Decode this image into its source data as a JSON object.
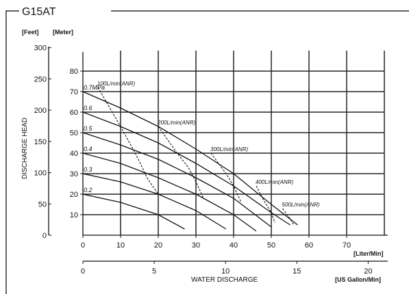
{
  "chart_data": {
    "type": "line",
    "title": "G15AT",
    "xlabel": "WATER DISCHARGE",
    "ylabel": "DISCHARGE HEAD",
    "x_unit_primary": "[Liter/Min]",
    "x_unit_secondary": "[US Gallon/Min]",
    "y_unit_primary": "[Meter]",
    "y_unit_secondary": "[Feet]",
    "xlim": [
      0,
      80
    ],
    "ylim": [
      0,
      90
    ],
    "x_ticks": [
      0,
      10,
      20,
      30,
      40,
      50,
      60,
      70
    ],
    "y_ticks": [
      10,
      20,
      30,
      40,
      50,
      60,
      70,
      80
    ],
    "x2_ticks": [
      0,
      5,
      10,
      15,
      20
    ],
    "y2_ticks": [
      0,
      50,
      100,
      150,
      200,
      250,
      300
    ],
    "grid": true,
    "series": [
      {
        "name": "0.7MPa",
        "x": [
          0,
          10,
          20,
          30,
          40,
          50,
          57
        ],
        "y": [
          70,
          62,
          53,
          42,
          30,
          15,
          5
        ]
      },
      {
        "name": "0.6",
        "x": [
          0,
          10,
          20,
          30,
          40,
          50,
          55
        ],
        "y": [
          60,
          53,
          45,
          35,
          24,
          11,
          5
        ]
      },
      {
        "name": "0.5",
        "x": [
          0,
          10,
          20,
          30,
          40,
          50
        ],
        "y": [
          50,
          44,
          37,
          28,
          18,
          4
        ]
      },
      {
        "name": "0.4",
        "x": [
          0,
          10,
          20,
          30,
          40,
          46
        ],
        "y": [
          40,
          35,
          28,
          20,
          10,
          2
        ]
      },
      {
        "name": "0.3",
        "x": [
          0,
          10,
          20,
          30,
          38
        ],
        "y": [
          30,
          26,
          20,
          12,
          3
        ]
      },
      {
        "name": "0.2",
        "x": [
          0,
          10,
          20,
          27
        ],
        "y": [
          20,
          16,
          10,
          3
        ]
      }
    ],
    "air_consumption": [
      {
        "name": "100L/min(ANR)",
        "x": [
          4,
          10,
          13,
          15,
          17,
          20
        ],
        "y": [
          72,
          53,
          43,
          36,
          28,
          20
        ]
      },
      {
        "name": "200L/min(ANR)",
        "x": [
          20,
          25,
          28,
          30,
          32
        ],
        "y": [
          53,
          40,
          33,
          26,
          18
        ]
      },
      {
        "name": "300L/min(ANR)",
        "x": [
          34,
          38,
          40,
          42
        ],
        "y": [
          40,
          30,
          24,
          16
        ]
      },
      {
        "name": "400L/min(ANR)",
        "x": [
          46,
          48,
          50,
          51
        ],
        "y": [
          24,
          17,
          11,
          6
        ]
      },
      {
        "name": "500L/min(ANR)",
        "x": [
          53,
          55,
          56
        ],
        "y": [
          13,
          8,
          5
        ]
      }
    ]
  }
}
